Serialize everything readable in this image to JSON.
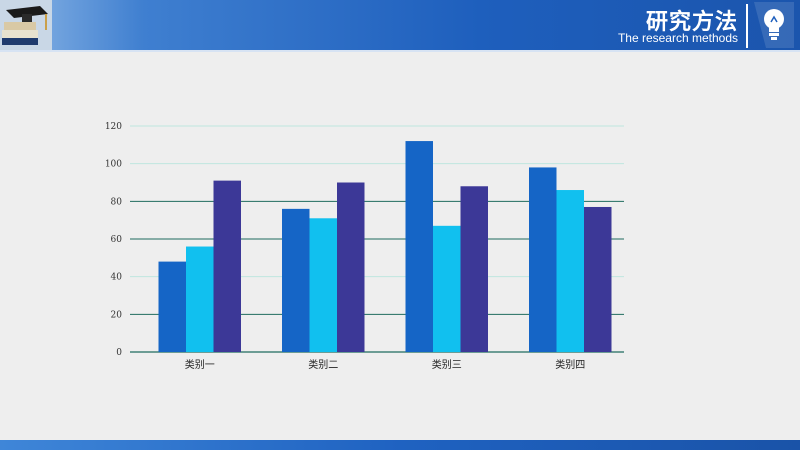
{
  "header": {
    "title_cn": "研究方法",
    "title_en": "The research methods"
  },
  "icons": {
    "decor": "books-graduation-cap-icon",
    "bulb": "lightbulb-icon"
  },
  "colors": {
    "series1": "#1565c6",
    "series2": "#11c0ef",
    "series3": "#3c3897",
    "grid": "#1f6b5e"
  },
  "chart_data": {
    "type": "bar",
    "title": "",
    "xlabel": "",
    "ylabel": "",
    "categories": [
      "类别一",
      "类别二",
      "类别三",
      "类别四"
    ],
    "series": [
      {
        "values": [
          48,
          76,
          112,
          98
        ]
      },
      {
        "values": [
          56,
          71,
          67,
          86
        ]
      },
      {
        "values": [
          91,
          90,
          88,
          77
        ]
      }
    ],
    "ylim": [
      0,
      120
    ],
    "yticks": [
      0,
      20,
      40,
      60,
      80,
      100,
      120
    ],
    "grid": true,
    "legend": "none"
  }
}
